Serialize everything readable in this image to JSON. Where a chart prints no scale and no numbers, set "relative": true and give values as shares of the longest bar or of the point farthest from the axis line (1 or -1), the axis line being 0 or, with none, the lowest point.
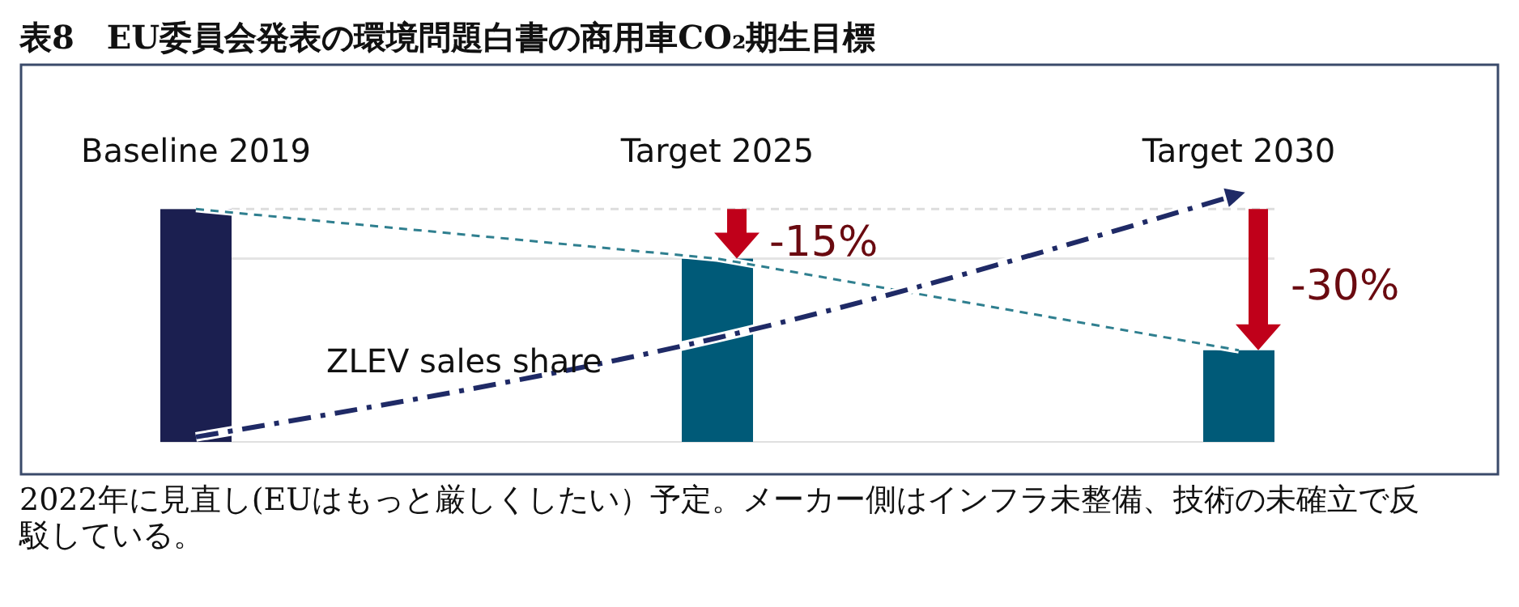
{
  "chart_data": {
    "type": "bar",
    "title": "表8　EU委員会発表の環境問題白書の商用車CO₂期生目標",
    "relative": true,
    "categories": [
      "Baseline 2019",
      "Target 2025",
      "Target 2030"
    ],
    "series": [
      {
        "colors": [
          "#1b1f50",
          "#005a78",
          "#005a78"
        ],
        "values": [
          0.94,
          0.74,
          0.37
        ]
      },
      {
        "type": "line",
        "color": "#2f7f8f",
        "line_style": "dashed",
        "values": [
          0.94,
          0.74,
          0.37
        ]
      },
      {
        "type": "line",
        "name": "ZLEV sales share",
        "color": "#1f2a66",
        "line_style": "dashed",
        "values": [
          0.02,
          0.42,
          1.0
        ]
      }
    ],
    "ref_lines": [
      {
        "axis": "y",
        "value": 0.94,
        "color": "#dddddd",
        "line_style": "dashed"
      },
      {
        "axis": "y",
        "value": 0.74,
        "color": "#e4e4e4",
        "line_style": "solid"
      }
    ],
    "annotations": [
      {
        "text": "-15%",
        "x": "Target 2025",
        "y": 0.74
      },
      {
        "text": "-30%",
        "x": "Target 2030",
        "y": 0.37
      },
      "2022年に見直し(EUはもっと厳しくしたい）予定。メーカー側はインフラ未整備、技術の未確立で反駁している。"
    ],
    "legend": false
  }
}
